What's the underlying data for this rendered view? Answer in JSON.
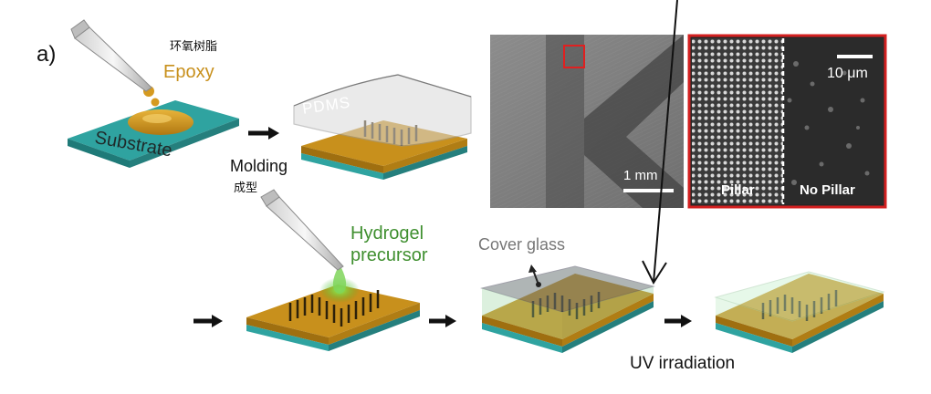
{
  "figure": {
    "panel_label": "a)",
    "labels": {
      "epoxy_cn": "环氧树脂",
      "epoxy": "Epoxy",
      "substrate": "Substrate",
      "pdms": "PDMS",
      "molding": "Molding",
      "molding_cn": "成型",
      "hydrogel_line1": "Hydrogel",
      "hydrogel_line2": "precursor",
      "cover_glass": "Cover glass",
      "uv": "UV irradiation"
    },
    "sem": {
      "scale_left": "1 mm",
      "scale_right": "10 μm",
      "pillar": "Pillar",
      "no_pillar": "No Pillar"
    },
    "colors": {
      "substrate": "#2fa3a0",
      "epoxy": "#c8901c",
      "hydrogel": "#5fbf3f",
      "sem_border": "#d32020",
      "arrow": "#111111"
    }
  }
}
